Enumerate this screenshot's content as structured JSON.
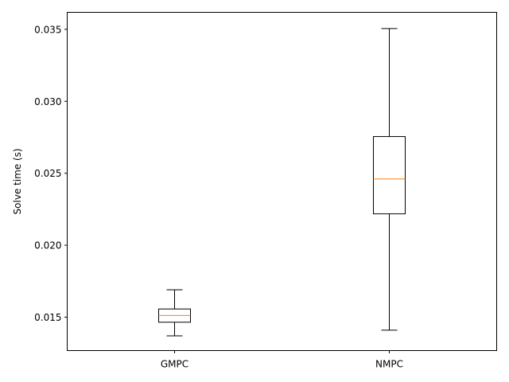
{
  "chart_data": {
    "type": "box",
    "title": "",
    "xlabel": "",
    "ylabel": "Solve time (s)",
    "ylim": [
      0.01268,
      0.03618
    ],
    "yticks": [
      0.015,
      0.02,
      0.025,
      0.03,
      0.035
    ],
    "ytick_labels": [
      "0.015",
      "0.020",
      "0.025",
      "0.030",
      "0.035"
    ],
    "categories": [
      "GMPC",
      "NMPC"
    ],
    "boxes": [
      {
        "name": "GMPC",
        "whisker_low": 0.0137,
        "q1": 0.01465,
        "median": 0.01512,
        "q3": 0.01557,
        "whisker_high": 0.0169
      },
      {
        "name": "NMPC",
        "whisker_low": 0.0141,
        "q1": 0.02218,
        "median": 0.0246,
        "q3": 0.02755,
        "whisker_high": 0.03505
      }
    ],
    "grid": false,
    "colors": {
      "box": "#000000",
      "median": "#ff7f0e"
    }
  }
}
